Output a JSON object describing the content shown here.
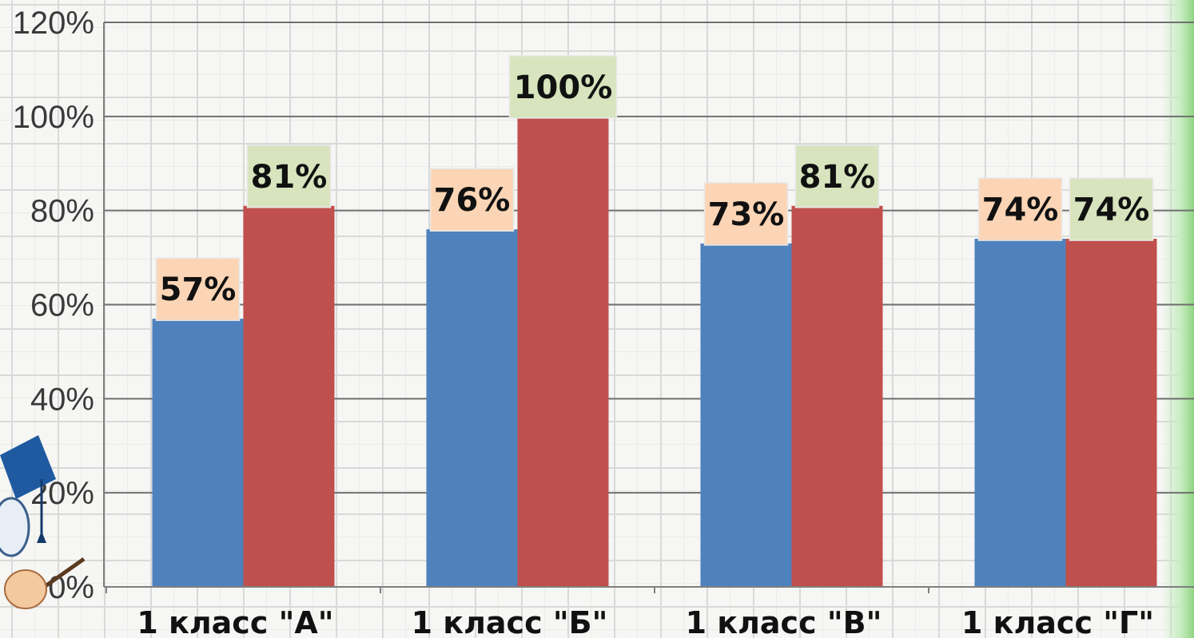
{
  "chart_data": {
    "type": "bar",
    "categories": [
      "1 класс \"А\"",
      "1 класс \"Б\"",
      "1 класс \"В\"",
      "1 класс \"Г\""
    ],
    "series": [
      {
        "values": [
          57,
          76,
          73,
          74
        ],
        "labels": [
          "57%",
          "76%",
          "73%",
          "74%"
        ],
        "color": "#4f81bd",
        "label_bg": "#fbd5b5"
      },
      {
        "values": [
          81,
          100,
          81,
          74
        ],
        "labels": [
          "81%",
          "100%",
          "81%",
          "74%"
        ],
        "color": "#c0504d",
        "label_bg": "#d7e4bd"
      }
    ],
    "ylim": [
      0,
      120
    ],
    "yticks": [
      0,
      20,
      40,
      60,
      80,
      100,
      120
    ],
    "ytick_labels": [
      "0%",
      "20%",
      "40%",
      "60%",
      "80%",
      "100%",
      "120%"
    ],
    "title": "",
    "xlabel": "",
    "ylabel": "",
    "grid": true,
    "legend": "none"
  },
  "colors": {
    "axis": "#7f7f7f",
    "gridline": "#6f6f6f"
  }
}
